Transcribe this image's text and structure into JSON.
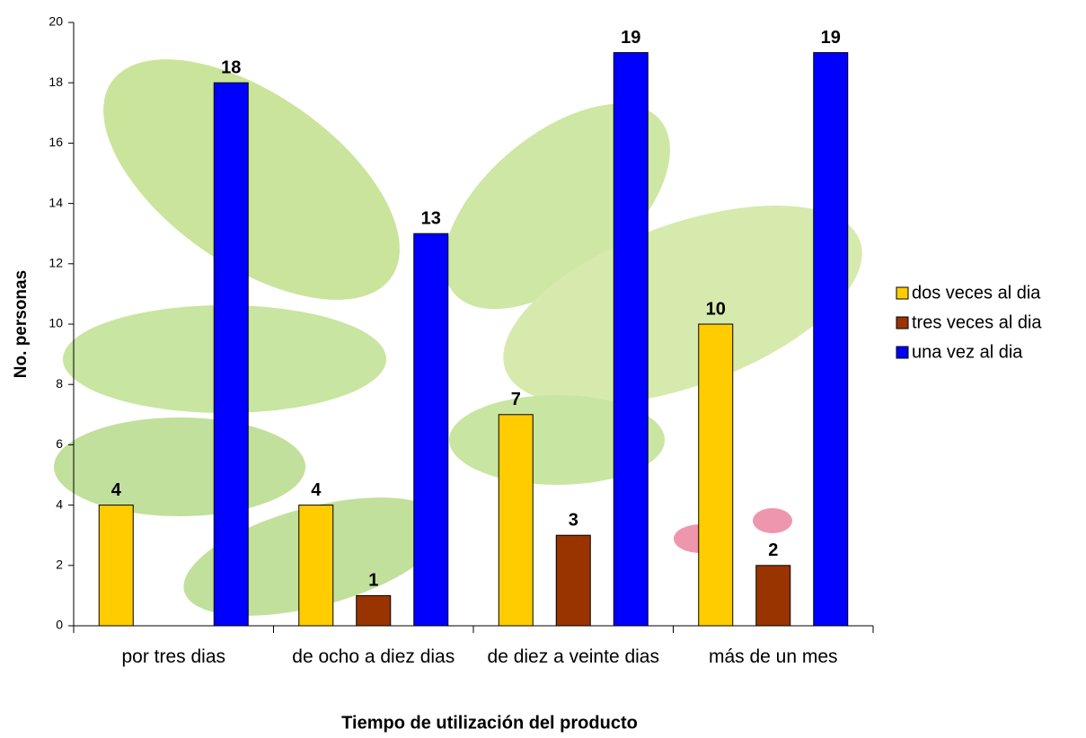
{
  "chart_data": {
    "type": "bar",
    "x_label": "Tiempo de utilización del producto",
    "y_label": "No. personas",
    "categories": [
      "por tres dias",
      "de ocho a diez dias",
      "de diez a veinte dias",
      "más de un mes"
    ],
    "series": [
      {
        "name": "dos veces al dia",
        "color": "#FFCC00",
        "values": [
          4,
          4,
          7,
          10
        ]
      },
      {
        "name": "tres veces al dia",
        "color": "#993300",
        "values": [
          null,
          1,
          3,
          2
        ]
      },
      {
        "name": "una vez al dia",
        "color": "#0000FF",
        "values": [
          18,
          13,
          19,
          19
        ]
      }
    ],
    "ylim": [
      0,
      20
    ],
    "yticks": [
      0,
      2,
      4,
      6,
      8,
      10,
      12,
      14,
      16,
      18,
      20
    ],
    "legend": "right"
  }
}
